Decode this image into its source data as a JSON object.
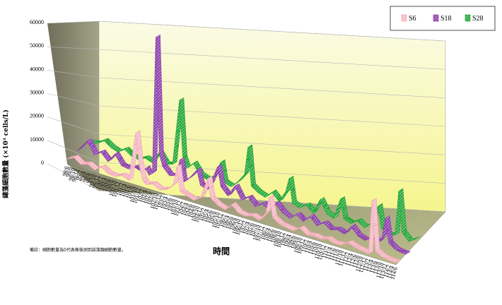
{
  "chart_data": {
    "type": "line",
    "style": "3d-ribbon",
    "title": "",
    "ylabel": "總藻細胞數量 (×10³ cells/L)",
    "xlabel": "時間",
    "note": "備註：細胞數量為0代表無檢測到該藻類細胞數量。",
    "ylim": [
      0,
      60000
    ],
    "yticks": [
      0,
      10000,
      20000,
      30000,
      40000,
      50000,
      60000
    ],
    "grid": true,
    "legend_position": "top-right",
    "categories": [
      "98/6",
      "98/7",
      "98/8",
      "98/9",
      "98/10",
      "98/11",
      "98/12",
      "99/1",
      "99/2",
      "99/3",
      "99/4",
      "99/5",
      "99/6",
      "99/7",
      "99/8",
      "99/9",
      "99/10",
      "99/11",
      "99/12",
      "100/1",
      "100/2",
      "100/3",
      "100/4",
      "100/5",
      "100/6",
      "100/7",
      "100/8",
      "100/9",
      "100/10",
      "100/11",
      "100/12",
      "101/1",
      "101/2",
      "101/3",
      "101/4",
      "101/5",
      "101/6",
      "101/7",
      "101/8",
      "101/9",
      "101/10",
      "101/11",
      "101/12",
      "102/1",
      "102/2",
      "102/3",
      "102/4",
      "102/5",
      "102/6",
      "102/7",
      "102/8",
      "102/9",
      "102/10",
      "102/11",
      "102/12",
      "103/1",
      "103/2",
      "103/3",
      "103/4",
      "103/5",
      "103/6",
      "103/7",
      "103/8",
      "103/9",
      "103/10",
      "103/11",
      "103/12",
      "104/1",
      "104/2",
      "104/3",
      "104/4",
      "104/5",
      "104/6",
      "104/7",
      "104/8",
      "104/9",
      "104/10",
      "104/11",
      "104/12",
      "105/1",
      "105/2",
      "105/3",
      "105/4",
      "105/5",
      "105/6",
      "105/7",
      "105/8",
      "105/9",
      "105/10",
      "105/11",
      "105/12",
      "106/1",
      "106/2",
      "106/3",
      "106/4",
      "106/5",
      "106/6",
      "106/7",
      "106/8",
      "106/9",
      "106/10",
      "106/11",
      "106/12",
      "107/1",
      "107/2",
      "107/3",
      "107/4",
      "107/5",
      "107/6",
      "107/7",
      "107/8",
      "107/9",
      "107/10",
      "107/11",
      "107/12",
      "108/1",
      "108/2",
      "108/3",
      "108/4",
      "108/5",
      "108/6",
      "108/7",
      "108/8",
      "108/9",
      "108/10",
      "108/11",
      "108/12",
      "109/1",
      "109/2",
      "109/3",
      "109/4",
      "109/5",
      "109/6",
      "109/7",
      "109/8",
      "109/9",
      "109/10",
      "109/11",
      "109/12",
      "110/1",
      "110/2",
      "110/3",
      "110/4",
      "110/5",
      "110/6",
      "110/7",
      "110/8",
      "110/9",
      "110/10",
      "110/11",
      "110/12",
      "111/1",
      "111/2",
      "111/3",
      "111/4",
      "111/5",
      "111/6",
      "111/7",
      "111/8",
      "111/9",
      "111/10",
      "111/11",
      "111/12",
      "112/1",
      "112/2",
      "112/3",
      "112/4",
      "112/5",
      "112/6",
      "112/7",
      "112/8",
      "112/9",
      "112/10",
      "112/11",
      "112/12",
      "113/1",
      "113/2",
      "113/3",
      "113/4",
      "113/5",
      "113/6",
      "113/7",
      "113/8",
      "113/9",
      "113/10",
      "113/11",
      "113/12",
      "114/1",
      "114/2",
      "114/3",
      "114/4",
      "114/5",
      "114/6"
    ],
    "visible_tick_labels": [
      "98/6",
      "98/8",
      "98/10",
      "98/12",
      "99/2",
      "99/4",
      "99/6",
      "99/8",
      "99/10",
      "99/12",
      "100/2",
      "100/4",
      "100/6",
      "100/8",
      "100/10",
      "100/12",
      "101/2",
      "101/4",
      "101/6",
      "101/8",
      "101/10",
      "101/12",
      "102/2",
      "102/4",
      "102/6",
      "102/8",
      "102/10",
      "102/12",
      "103/2",
      "103/4",
      "103/6",
      "103/8",
      "103/10",
      "103/12",
      "104/2",
      "104/4",
      "104/6",
      "104/8",
      "104/10",
      "104/12",
      "105/2",
      "105/4",
      "105/6",
      "105/8",
      "105/10",
      "105/12",
      "106/2",
      "106/4",
      "106/6",
      "106/8",
      "106/10",
      "106/12",
      "107/2",
      "107/4",
      "107/6",
      "107/8",
      "107/10",
      "107/12",
      "108/2",
      "108/4",
      "108/6",
      "108/8",
      "108/10",
      "108/12",
      "109/2",
      "109/4",
      "109/6",
      "109/8",
      "109/10",
      "109/12",
      "110/2",
      "110/4",
      "110/6",
      "110/8",
      "110/10",
      "110/12",
      "111/2",
      "111/4",
      "111/6",
      "111/8",
      "111/10",
      "111/12",
      "112/2",
      "112/4",
      "112/6",
      "112/8",
      "112/10",
      "112/12",
      "113/2",
      "113/4",
      "113/6",
      "113/8",
      "113/10",
      "113/12",
      "114/2",
      "114/4",
      "114/6"
    ],
    "series": [
      {
        "name": "S6",
        "color": "#f2a6b4",
        "keypoints": [
          [
            0,
            2000
          ],
          [
            4,
            3500
          ],
          [
            8,
            1500
          ],
          [
            12,
            2500
          ],
          [
            16,
            1000
          ],
          [
            20,
            3000
          ],
          [
            24,
            1200
          ],
          [
            28,
            800
          ],
          [
            32,
            2200
          ],
          [
            36,
            1000
          ],
          [
            40,
            22000
          ],
          [
            42,
            9000
          ],
          [
            44,
            3000
          ],
          [
            46,
            1500
          ],
          [
            50,
            2500
          ],
          [
            54,
            1000
          ],
          [
            58,
            2000
          ],
          [
            62,
            5000
          ],
          [
            64,
            13000
          ],
          [
            66,
            3000
          ],
          [
            70,
            2000
          ],
          [
            74,
            1000
          ],
          [
            78,
            3000
          ],
          [
            82,
            12000
          ],
          [
            84,
            4000
          ],
          [
            88,
            2000
          ],
          [
            92,
            1000
          ],
          [
            96,
            4000
          ],
          [
            100,
            1500
          ],
          [
            104,
            1000
          ],
          [
            108,
            2000
          ],
          [
            112,
            1000
          ],
          [
            116,
            5000
          ],
          [
            118,
            12000
          ],
          [
            120,
            4000
          ],
          [
            124,
            2000
          ],
          [
            128,
            1500
          ],
          [
            132,
            1000
          ],
          [
            136,
            3000
          ],
          [
            140,
            1000
          ],
          [
            144,
            1500
          ],
          [
            148,
            1000
          ],
          [
            152,
            2000
          ],
          [
            156,
            1000
          ],
          [
            160,
            1200
          ],
          [
            164,
            3000
          ],
          [
            168,
            2000
          ],
          [
            172,
            1500
          ],
          [
            176,
            1000
          ],
          [
            178,
            24000
          ],
          [
            180,
            3000
          ],
          [
            184,
            1500
          ],
          [
            188,
            1000
          ],
          [
            192,
            800
          ]
        ]
      },
      {
        "name": "S18",
        "color": "#8e44ad",
        "keypoints": [
          [
            0,
            2500
          ],
          [
            6,
            8000
          ],
          [
            10,
            3000
          ],
          [
            14,
            5000
          ],
          [
            18,
            2000
          ],
          [
            22,
            6000
          ],
          [
            26,
            2000
          ],
          [
            30,
            1500
          ],
          [
            34,
            3000
          ],
          [
            38,
            2000
          ],
          [
            40,
            4000
          ],
          [
            42,
            1500
          ],
          [
            44,
            3000
          ],
          [
            46,
            61000
          ],
          [
            48,
            12000
          ],
          [
            50,
            7000
          ],
          [
            54,
            4000
          ],
          [
            58,
            5000
          ],
          [
            60,
            12000
          ],
          [
            62,
            3000
          ],
          [
            66,
            6000
          ],
          [
            70,
            10000
          ],
          [
            72,
            4000
          ],
          [
            76,
            3000
          ],
          [
            80,
            10000
          ],
          [
            82,
            14000
          ],
          [
            84,
            6000
          ],
          [
            88,
            3000
          ],
          [
            92,
            8000
          ],
          [
            96,
            3000
          ],
          [
            100,
            5000
          ],
          [
            104,
            2000
          ],
          [
            108,
            4000
          ],
          [
            112,
            2500
          ],
          [
            116,
            6000
          ],
          [
            120,
            3000
          ],
          [
            124,
            1500
          ],
          [
            128,
            4000
          ],
          [
            132,
            2000
          ],
          [
            136,
            5000
          ],
          [
            140,
            2000
          ],
          [
            144,
            4000
          ],
          [
            148,
            2000
          ],
          [
            152,
            3000
          ],
          [
            156,
            2000
          ],
          [
            160,
            6000
          ],
          [
            164,
            3000
          ],
          [
            168,
            2000
          ],
          [
            172,
            4000
          ],
          [
            176,
            3000
          ],
          [
            178,
            5000
          ],
          [
            180,
            14000
          ],
          [
            182,
            4000
          ],
          [
            186,
            2000
          ],
          [
            190,
            1500
          ]
        ]
      },
      {
        "name": "S28",
        "color": "#27a83c",
        "keypoints": [
          [
            0,
            3000
          ],
          [
            6,
            4000
          ],
          [
            10,
            6000
          ],
          [
            14,
            4000
          ],
          [
            18,
            3000
          ],
          [
            22,
            5000
          ],
          [
            26,
            3000
          ],
          [
            30,
            2500
          ],
          [
            34,
            4000
          ],
          [
            38,
            3000
          ],
          [
            42,
            8000
          ],
          [
            46,
            4000
          ],
          [
            50,
            5000
          ],
          [
            54,
            33000
          ],
          [
            56,
            9000
          ],
          [
            58,
            5000
          ],
          [
            62,
            8000
          ],
          [
            66,
            4000
          ],
          [
            70,
            3000
          ],
          [
            74,
            5000
          ],
          [
            78,
            12000
          ],
          [
            80,
            4000
          ],
          [
            84,
            3000
          ],
          [
            88,
            6000
          ],
          [
            92,
            10000
          ],
          [
            94,
            22000
          ],
          [
            96,
            6000
          ],
          [
            100,
            4000
          ],
          [
            104,
            3000
          ],
          [
            108,
            6000
          ],
          [
            112,
            3000
          ],
          [
            116,
            8000
          ],
          [
            118,
            14000
          ],
          [
            120,
            4000
          ],
          [
            124,
            3000
          ],
          [
            128,
            5000
          ],
          [
            132,
            2500
          ],
          [
            136,
            9000
          ],
          [
            140,
            4000
          ],
          [
            144,
            3000
          ],
          [
            148,
            12000
          ],
          [
            150,
            4000
          ],
          [
            154,
            3000
          ],
          [
            158,
            5000
          ],
          [
            162,
            3000
          ],
          [
            166,
            6000
          ],
          [
            170,
            14000
          ],
          [
            172,
            5000
          ],
          [
            176,
            3000
          ],
          [
            180,
            4000
          ],
          [
            182,
            23000
          ],
          [
            184,
            6000
          ],
          [
            188,
            3000
          ],
          [
            192,
            5000
          ]
        ]
      }
    ]
  }
}
